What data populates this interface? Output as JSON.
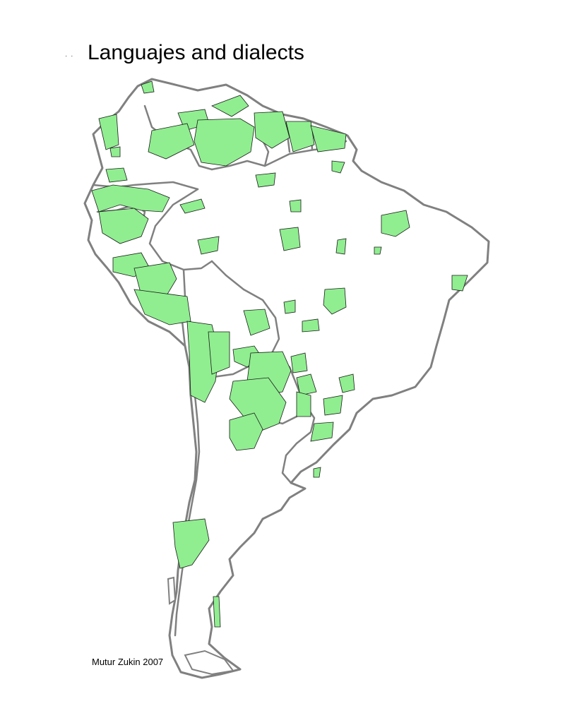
{
  "title": "Languajes and dialects",
  "credit": "Mutur Zukin 2007",
  "legend_marker": "· ·",
  "colors": {
    "language_area": "#90ee90",
    "land": "#ffffff",
    "borders": "#808080",
    "area_outline": "#1a1a1a"
  }
}
